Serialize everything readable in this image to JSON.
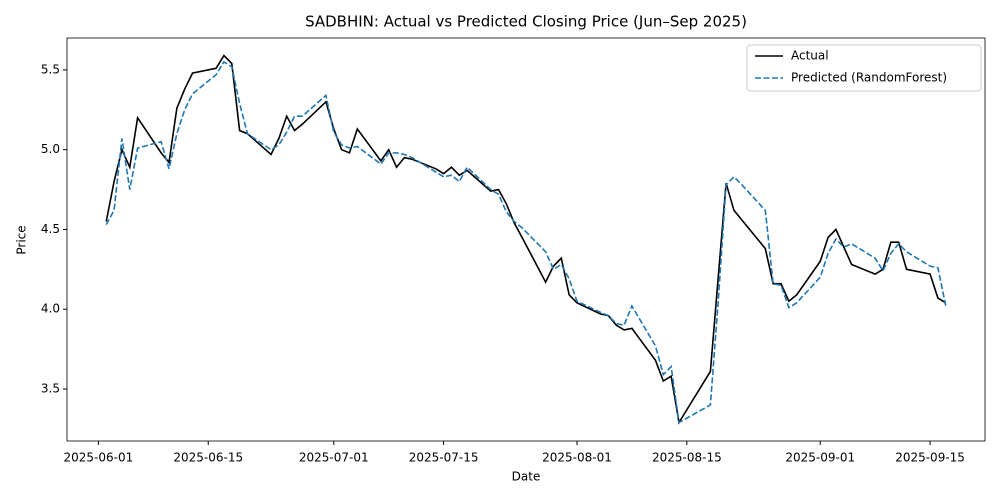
{
  "chart_data": {
    "type": "line",
    "title": "SADBHIN: Actual vs Predicted Closing Price (Jun–Sep 2025)",
    "x_label": "Date",
    "y_label": "Price",
    "x": [
      "2025-06-02",
      "2025-06-03",
      "2025-06-04",
      "2025-06-05",
      "2025-06-06",
      "2025-06-09",
      "2025-06-10",
      "2025-06-11",
      "2025-06-12",
      "2025-06-13",
      "2025-06-16",
      "2025-06-17",
      "2025-06-18",
      "2025-06-19",
      "2025-06-20",
      "2025-06-23",
      "2025-06-24",
      "2025-06-25",
      "2025-06-26",
      "2025-06-27",
      "2025-06-30",
      "2025-07-01",
      "2025-07-02",
      "2025-07-03",
      "2025-07-04",
      "2025-07-07",
      "2025-07-08",
      "2025-07-09",
      "2025-07-10",
      "2025-07-11",
      "2025-07-14",
      "2025-07-15",
      "2025-07-16",
      "2025-07-17",
      "2025-07-18",
      "2025-07-21",
      "2025-07-22",
      "2025-07-23",
      "2025-07-24",
      "2025-07-25",
      "2025-07-28",
      "2025-07-29",
      "2025-07-30",
      "2025-07-31",
      "2025-08-01",
      "2025-08-04",
      "2025-08-05",
      "2025-08-06",
      "2025-08-07",
      "2025-08-08",
      "2025-08-11",
      "2025-08-12",
      "2025-08-13",
      "2025-08-14",
      "2025-08-18",
      "2025-08-19",
      "2025-08-20",
      "2025-08-21",
      "2025-08-22",
      "2025-08-25",
      "2025-08-26",
      "2025-08-27",
      "2025-08-28",
      "2025-08-29",
      "2025-09-01",
      "2025-09-02",
      "2025-09-03",
      "2025-09-04",
      "2025-09-05",
      "2025-09-08",
      "2025-09-09",
      "2025-09-10",
      "2025-09-11",
      "2025-09-12",
      "2025-09-15",
      "2025-09-16",
      "2025-09-17"
    ],
    "series": [
      {
        "name": "Actual",
        "color": "#000000",
        "dash": false,
        "values": [
          4.55,
          4.8,
          5.0,
          4.89,
          5.2,
          4.98,
          4.92,
          5.26,
          5.38,
          5.48,
          5.51,
          5.59,
          5.54,
          5.12,
          5.1,
          4.97,
          5.07,
          5.21,
          5.12,
          5.16,
          5.3,
          5.13,
          5.0,
          4.98,
          5.13,
          4.93,
          5.0,
          4.89,
          4.95,
          4.94,
          4.88,
          4.85,
          4.89,
          4.84,
          4.87,
          4.74,
          4.75,
          4.66,
          4.54,
          4.45,
          4.17,
          4.27,
          4.32,
          4.09,
          4.04,
          3.97,
          3.96,
          3.9,
          3.87,
          3.88,
          3.68,
          3.55,
          3.58,
          3.29,
          3.61,
          4.2,
          4.79,
          4.62,
          4.56,
          4.38,
          4.16,
          4.16,
          4.05,
          4.09,
          4.3,
          4.45,
          4.5,
          4.39,
          4.28,
          4.22,
          4.25,
          4.42,
          4.42,
          4.25,
          4.22,
          4.07,
          4.04
        ]
      },
      {
        "name": "Predicted (RandomForest)",
        "color": "#1f77b4",
        "dash": true,
        "values": [
          4.53,
          4.62,
          5.07,
          4.75,
          5.01,
          5.05,
          4.88,
          5.1,
          5.25,
          5.35,
          5.47,
          5.55,
          5.52,
          5.29,
          5.1,
          5.0,
          5.03,
          5.11,
          5.21,
          5.21,
          5.34,
          5.11,
          5.03,
          5.01,
          5.02,
          4.91,
          4.98,
          4.98,
          4.97,
          4.95,
          4.86,
          4.83,
          4.84,
          4.8,
          4.89,
          4.75,
          4.72,
          4.61,
          4.55,
          4.51,
          4.36,
          4.25,
          4.28,
          4.19,
          4.05,
          3.98,
          3.96,
          3.91,
          3.9,
          4.02,
          3.77,
          3.59,
          3.64,
          3.29,
          3.4,
          4.05,
          4.78,
          4.83,
          4.78,
          4.62,
          4.16,
          4.15,
          4.01,
          4.04,
          4.2,
          4.35,
          4.44,
          4.39,
          4.41,
          4.32,
          4.24,
          4.35,
          4.41,
          4.36,
          4.27,
          4.26,
          4.02
        ]
      }
    ],
    "xlim": [
      "2025-05-28",
      "2025-09-22"
    ],
    "xticks": [
      "2025-06-01",
      "2025-06-15",
      "2025-07-01",
      "2025-07-15",
      "2025-08-01",
      "2025-08-15",
      "2025-09-01",
      "2025-09-15"
    ],
    "ylim": [
      3.174,
      5.7
    ],
    "yticks": [
      3.5,
      {
        "value": 4,
        "label": "4.0"
      },
      4.5,
      {
        "value": 5,
        "label": "5.0"
      },
      5.5
    ],
    "grid": false,
    "legend": "upper right"
  }
}
